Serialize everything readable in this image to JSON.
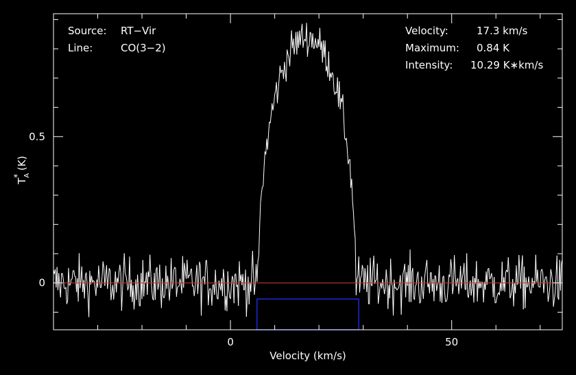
{
  "chart_data": {
    "type": "line",
    "xlabel": "Velocity (km/s)",
    "ylabel": "T",
    "ylabel_sub": "A",
    "ylabel_sup": "*",
    "ylabel_unit": " (K)",
    "xlim": [
      -40,
      75
    ],
    "ylim": [
      -0.16,
      0.92
    ],
    "x_ticks": [
      0,
      50
    ],
    "x_tick_labels": [
      "0",
      "50"
    ],
    "y_ticks": [
      0,
      0.5
    ],
    "y_tick_labels": [
      "0",
      "0.5"
    ],
    "x_minor_step": 10,
    "y_minor_step": 0.1,
    "grid": false,
    "colors": {
      "background": "#000000",
      "frame": "#ffffff",
      "spectrum": "#ffffff",
      "baseline": "#c0392b",
      "window": "#1c2bd8"
    },
    "baseline_y": 0,
    "window": {
      "x": [
        6,
        29
      ],
      "y": [
        -0.16,
        -0.055
      ]
    },
    "annotations": {
      "source_label": "Source:",
      "source_value": "RT−Vir",
      "line_label": "Line:",
      "line_value": "CO(3−2)",
      "velocity_label": "Velocity:",
      "velocity_value": "17.3 km/s",
      "maximum_label": "Maximum:",
      "maximum_value": "0.84 K",
      "intensity_label": "Intensity:",
      "intensity_value": "10.29 K∗km/s"
    },
    "series": [
      {
        "center": 17.3,
        "peak": 0.84,
        "half_width": 11,
        "shape_exponent": 1.6,
        "noise_rms": 0.045,
        "step": 0.2
      }
    ]
  }
}
